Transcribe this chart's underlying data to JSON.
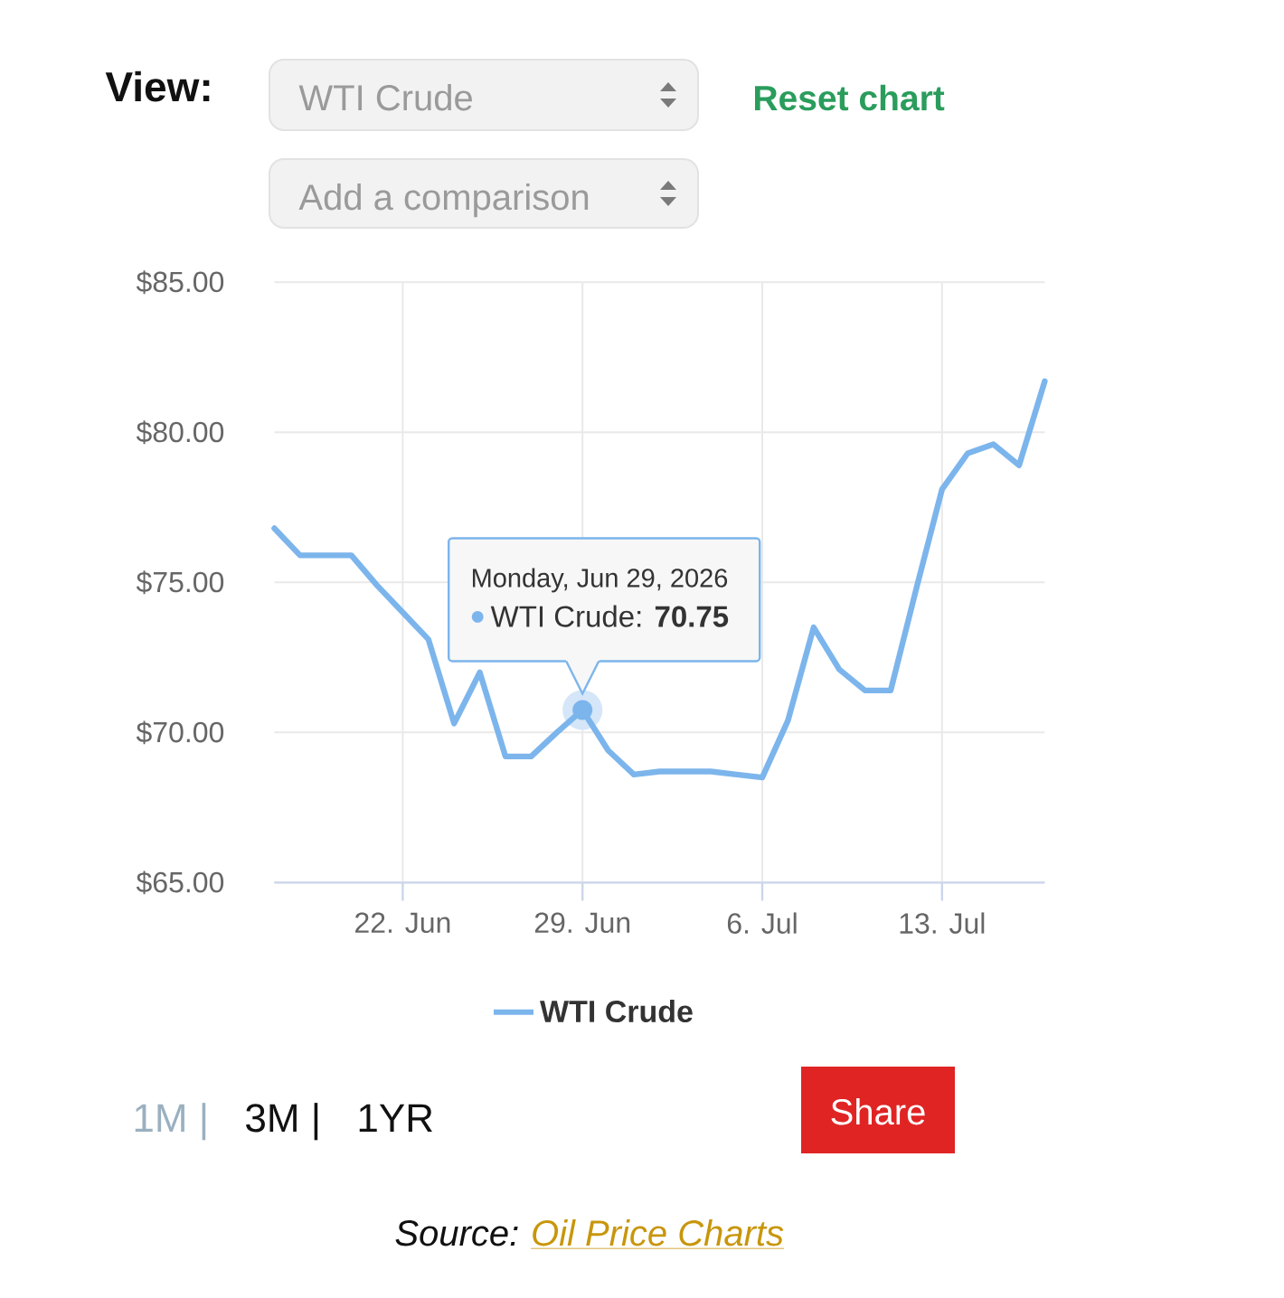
{
  "chart_data": {
    "type": "line",
    "x": [
      "2026-06-17",
      "2026-06-18",
      "2026-06-19",
      "2026-06-20",
      "2026-06-21",
      "2026-06-22",
      "2026-06-23",
      "2026-06-24",
      "2026-06-25",
      "2026-06-26",
      "2026-06-27",
      "2026-06-28",
      "2026-06-29",
      "2026-06-30",
      "2026-07-01",
      "2026-07-02",
      "2026-07-03",
      "2026-07-04",
      "2026-07-05",
      "2026-07-06",
      "2026-07-07",
      "2026-07-08",
      "2026-07-09",
      "2026-07-10",
      "2026-07-11",
      "2026-07-12",
      "2026-07-13",
      "2026-07-14",
      "2026-07-15",
      "2026-07-16",
      "2026-07-17"
    ],
    "series": [
      {
        "name": "WTI Crude",
        "color": "#7cb5ec",
        "values": [
          76.8,
          75.9,
          75.9,
          75.9,
          74.9,
          74.0,
          73.1,
          70.3,
          72.0,
          69.2,
          69.2,
          70.0,
          70.75,
          69.4,
          68.6,
          68.7,
          68.7,
          68.7,
          68.6,
          68.5,
          70.4,
          73.5,
          72.1,
          71.4,
          71.4,
          74.8,
          78.1,
          79.3,
          79.6,
          78.9,
          81.7
        ]
      }
    ],
    "xlim": [
      "2026-06-17",
      "2026-07-17"
    ],
    "xticks": [
      {
        "value": "2026-06-22",
        "label": "22. Jun"
      },
      {
        "value": "2026-06-29",
        "label": "29. Jun"
      },
      {
        "value": "2026-07-06",
        "label": "6. Jul"
      },
      {
        "value": "2026-07-13",
        "label": "13. Jul"
      }
    ],
    "ylim": [
      65,
      85
    ],
    "yticks": [
      {
        "value": 65,
        "label": "$65.00"
      },
      {
        "value": 70,
        "label": "$70.00"
      },
      {
        "value": 75,
        "label": "$75.00"
      },
      {
        "value": 80,
        "label": "$80.00"
      },
      {
        "value": 85,
        "label": "$85.00"
      }
    ],
    "grid": true,
    "legend": "bottom",
    "annotations": [
      "View:",
      "WTI Crude",
      "Reset chart",
      "Add a comparison",
      "Monday, Jun 29, 2026",
      {
        "text": "WTI Crude: **70.75**",
        "x": "2026-06-29",
        "y": 70.75
      },
      "1M |",
      "3M |",
      "1YR",
      "Share",
      "Source:",
      "Oil Price Charts"
    ]
  }
}
